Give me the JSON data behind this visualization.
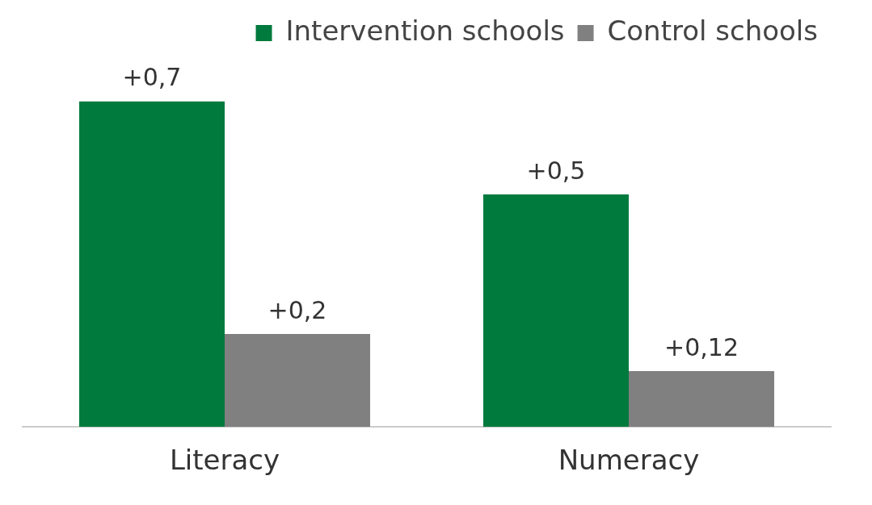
{
  "chart_data": {
    "type": "bar",
    "categories": [
      "Literacy",
      "Numeracy"
    ],
    "series": [
      {
        "name": "Intervention schools",
        "color": "#007a3d",
        "values": [
          0.7,
          0.5
        ],
        "value_labels": [
          "+0,7",
          "+0,5"
        ]
      },
      {
        "name": "Control schools",
        "color": "#808080",
        "values": [
          0.2,
          0.12
        ],
        "value_labels": [
          "+0,2",
          "+0,12"
        ]
      }
    ],
    "legend": "top right",
    "grid": false,
    "tick_labels": "x"
  }
}
